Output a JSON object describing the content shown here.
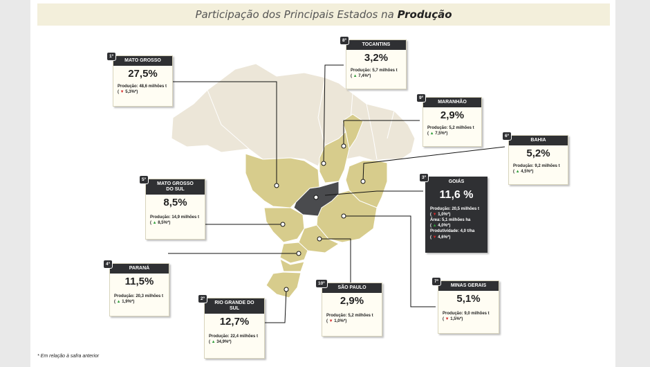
{
  "title": {
    "prefix": "Participação dos Principais Estados na",
    "emphasis": "Produção"
  },
  "footnote": "* Em relação à safra anterior",
  "colors": {
    "highlight_state": "#d7cc8c",
    "goias": "#4a4b4e",
    "other_state": "#ece6d8",
    "card_header": "#2f3033",
    "up_arrow": "#2f9e3a",
    "down_arrow": "#d62828"
  },
  "cards": {
    "mato_grosso": {
      "rank": "1º",
      "name": "MATO GROSSO",
      "share": "27,5%",
      "production": "Produção: 48,6 milhões t",
      "variation": "5,3%*",
      "direction": "down"
    },
    "goias": {
      "rank": "3º",
      "name": "GOIÁS",
      "share": "11,6 %",
      "production": "Produção: 20,5 milhões t",
      "prod_var": "1,0%*",
      "area": "Área: 5,1 milhões ha",
      "area_var": "4,0%*",
      "productivity": "Produtividade: 4,0 t/ha",
      "productivity_var": "4,6%*"
    },
    "tocantins": {
      "rank": "8º",
      "name": "TOCANTINS",
      "share": "3,2%",
      "production": "Produção: 5,7 milhões t",
      "variation": "7,4%*",
      "direction": "up"
    },
    "maranhao": {
      "rank": "9º",
      "name": "MARANHÃO",
      "share": "2,9%",
      "production": "Produção: 5,2 milhões t",
      "variation": "7,5%*",
      "direction": "up"
    },
    "bahia": {
      "rank": "6º",
      "name": "BAHIA",
      "share": "5,2%",
      "production": "Produção: 9,2 milhões t",
      "variation": "4,5%*",
      "direction": "up"
    },
    "mato_grosso_do_sul": {
      "rank": "5º",
      "name": "MATO GROSSO DO SUL",
      "share": "8,5%",
      "production": "Produção: 14,9 milhões t",
      "variation": "8,5%*",
      "direction": "up"
    },
    "parana": {
      "rank": "4º",
      "name": "PARANÁ",
      "share": "11,5%",
      "production": "Produção: 20,3 milhões t",
      "variation": "1,9%*",
      "direction": "up"
    },
    "rio_grande_do_sul": {
      "rank": "2º",
      "name": "RIO GRANDE DO SUL",
      "share": "12,7%",
      "production": "Produção: 22,4 milhões t",
      "variation": "34,9%*",
      "direction": "up"
    },
    "sao_paulo": {
      "rank": "10º",
      "name": "SÃO PAULO",
      "share": "2,9%",
      "production": "Produção: 5,2 milhões t",
      "variation": "1,0%*",
      "direction": "down"
    },
    "minas_gerais": {
      "rank": "7º",
      "name": "MINAS GERAIS",
      "share": "5,1%",
      "production": "Produção: 9,0 milhões t",
      "variation": "1,5%*",
      "direction": "down"
    }
  }
}
